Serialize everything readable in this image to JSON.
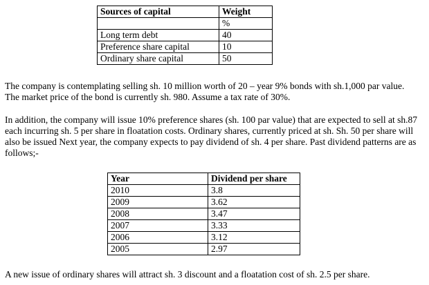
{
  "capital_table": {
    "header": [
      "Sources of capital",
      "Weight"
    ],
    "unit": "%",
    "rows": [
      [
        "Long term debt",
        "40"
      ],
      [
        "Preference share capital",
        "10"
      ],
      [
        "Ordinary share capital",
        "50"
      ]
    ]
  },
  "paragraphs": [
    "The company is contemplating selling sh. 10 million worth of 20 – year 9% bonds with sh.1,000 par value. The market price of the bond is currently sh. 980. Assume a tax rate of 30%.",
    "In addition, the company will issue 10% preference shares (sh. 100 par value) that are expected to sell at sh.87 each incurring sh. 5 per share in floatation costs. Ordinary shares, currently priced at sh. Sh. 50 per share will also be issued Next year, the company expects to pay dividend of sh. 4 per share. Past dividend patterns are as follows;-",
    "A new issue of ordinary shares will attract sh. 3 discount and a floatation cost of sh. 2.5 per share."
  ],
  "dividend_table": {
    "header": [
      "Year",
      "Dividend per share"
    ],
    "rows": [
      [
        "2010",
        "3.8"
      ],
      [
        "2009",
        "3.62"
      ],
      [
        "2008",
        "3.47"
      ],
      [
        "2007",
        "3.33"
      ],
      [
        "2006",
        "3.12"
      ],
      [
        "2005",
        "2.97"
      ]
    ]
  }
}
